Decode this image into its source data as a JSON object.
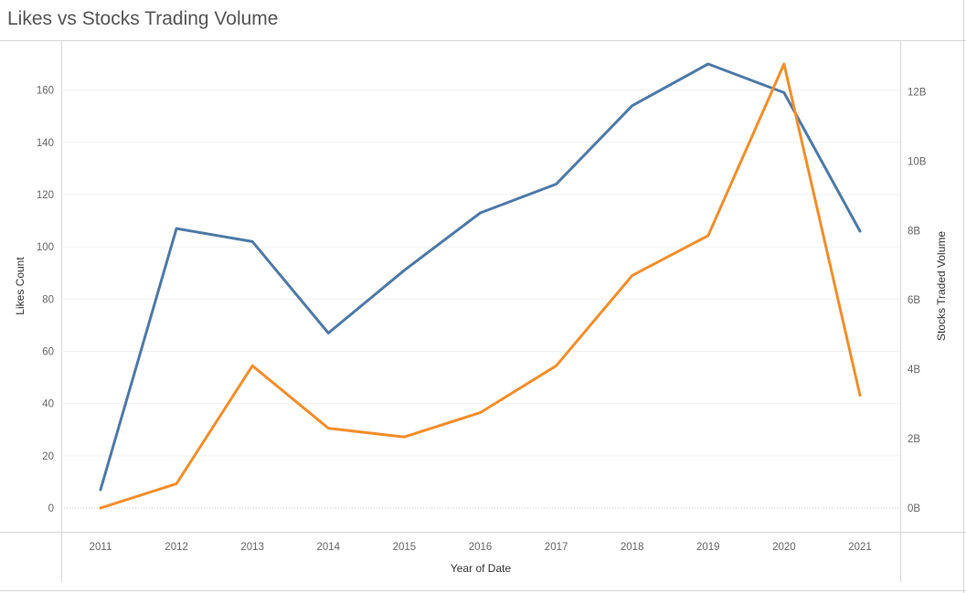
{
  "chart_data": {
    "type": "line",
    "title": "Likes vs Stocks Trading Volume",
    "xlabel": "Year of Date",
    "ylabel_left": "Likes Count",
    "ylabel_right": "Stocks Traded Volume",
    "x": [
      "2011",
      "2012",
      "2013",
      "2014",
      "2015",
      "2016",
      "2017",
      "2018",
      "2019",
      "2020",
      "2021"
    ],
    "y_left": {
      "ticks": [
        0,
        20,
        40,
        60,
        80,
        100,
        120,
        140,
        160
      ],
      "tick_labels": [
        "0",
        "20",
        "40",
        "60",
        "80",
        "100",
        "120",
        "140",
        "160"
      ],
      "range": [
        0,
        170
      ]
    },
    "y_right": {
      "ticks": [
        0,
        2,
        4,
        6,
        8,
        10,
        12
      ],
      "tick_labels": [
        "0B",
        "2B",
        "4B",
        "6B",
        "8B",
        "10B",
        "12B"
      ],
      "range": [
        0,
        12.8
      ],
      "unit": "B"
    },
    "series": [
      {
        "axis": "left",
        "color": "#4e79a7",
        "values": [
          7,
          107,
          102,
          67,
          91,
          113,
          124,
          154,
          170,
          159,
          106
        ]
      },
      {
        "axis": "right",
        "color": "#f28e2b",
        "values": [
          0.0,
          0.7,
          4.1,
          2.3,
          2.05,
          2.75,
          4.1,
          6.7,
          7.85,
          12.8,
          3.25
        ]
      }
    ],
    "grid": true,
    "legend": "none"
  }
}
